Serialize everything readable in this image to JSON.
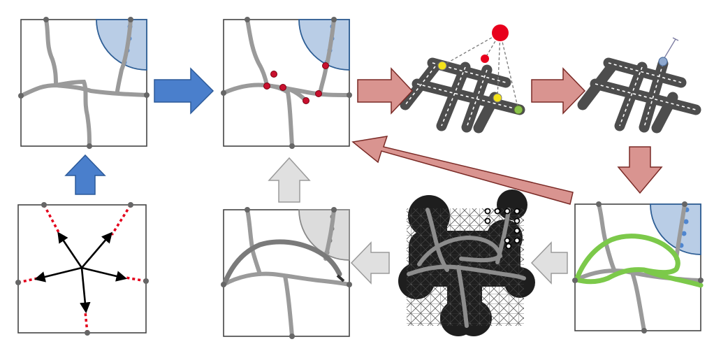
{
  "diagram": {
    "panels": [
      {
        "id": "p1",
        "stage": "road-network-initial"
      },
      {
        "id": "p2",
        "stage": "road-network-with-intersections"
      },
      {
        "id": "p3",
        "stage": "grid-model-sensor-link"
      },
      {
        "id": "p4",
        "stage": "grid-model-single-node"
      },
      {
        "id": "p5",
        "stage": "road-network-highlighted-route"
      },
      {
        "id": "p6",
        "stage": "dense-lattice-coverage"
      },
      {
        "id": "p7",
        "stage": "road-network-refined"
      },
      {
        "id": "p8",
        "stage": "random-walk-seed"
      }
    ],
    "arrows": [
      {
        "from": "p8",
        "to": "p1",
        "style": "blue"
      },
      {
        "from": "p1",
        "to": "p2",
        "style": "blue"
      },
      {
        "from": "p2",
        "to": "p3",
        "style": "red"
      },
      {
        "from": "p3",
        "to": "p4",
        "style": "red"
      },
      {
        "from": "p4",
        "to": "p5",
        "style": "red"
      },
      {
        "from": "p5",
        "to": "p6",
        "style": "gray"
      },
      {
        "from": "p6",
        "to": "p7",
        "style": "gray"
      },
      {
        "from": "p7",
        "to": "p2",
        "style": "gray"
      },
      {
        "from": "p6",
        "to": "p2",
        "style": "red-long"
      }
    ],
    "colors": {
      "road": "#9a9a9a",
      "road_dark": "#555555",
      "node": "#666666",
      "zone_fill": "#b9cde6",
      "zone_stroke": "#2f5f96",
      "zone_dots": "#4f86d0",
      "zone_gray": "#dcdcdc",
      "arrow_blue": "#4a7fcc",
      "arrow_red": "#d99490",
      "arrow_gray": "#e0e0e0",
      "intersection_red": "#c8102e",
      "sensor_red": "#e8001c",
      "sensor_yellow": "#f3e21a",
      "sensor_green": "#8bc34a",
      "route_green": "#7cc94a",
      "walk_red": "#e4001b"
    }
  }
}
